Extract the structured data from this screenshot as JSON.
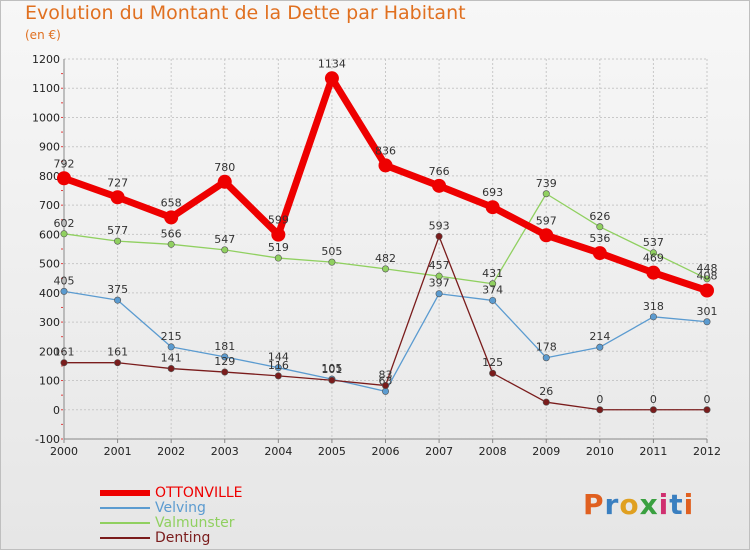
{
  "title": "Evolution du Montant de la Dette par Habitant",
  "unit_label": "(en €)",
  "logo_text": "Proxiti",
  "chart_data": {
    "type": "line",
    "x": [
      "2000",
      "2001",
      "2002",
      "2003",
      "2004",
      "2005",
      "2006",
      "2007",
      "2008",
      "2009",
      "2010",
      "2011",
      "2012"
    ],
    "ylim": [
      -100,
      1200
    ],
    "yticks": [
      -100,
      0,
      100,
      200,
      300,
      400,
      500,
      600,
      700,
      800,
      900,
      1000,
      1100,
      1200
    ],
    "grid": true,
    "legend_position": "bottom-left",
    "series": [
      {
        "name": "OTTONVILLE",
        "color": "#ee0000",
        "values": [
          792,
          727,
          658,
          780,
          599,
          1134,
          836,
          766,
          693,
          597,
          536,
          469,
          408
        ]
      },
      {
        "name": "Velving",
        "color": "#5b9bd0",
        "values": [
          405,
          375,
          215,
          181,
          144,
          105,
          63,
          397,
          374,
          178,
          214,
          318,
          301
        ]
      },
      {
        "name": "Valmunster",
        "color": "#90d060",
        "values": [
          602,
          577,
          566,
          547,
          519,
          505,
          482,
          457,
          431,
          739,
          626,
          537,
          448
        ]
      },
      {
        "name": "Denting",
        "color": "#7a1c1c",
        "values": [
          161,
          161,
          141,
          129,
          116,
          101,
          83,
          593,
          125,
          26,
          0,
          0,
          0
        ]
      }
    ]
  }
}
